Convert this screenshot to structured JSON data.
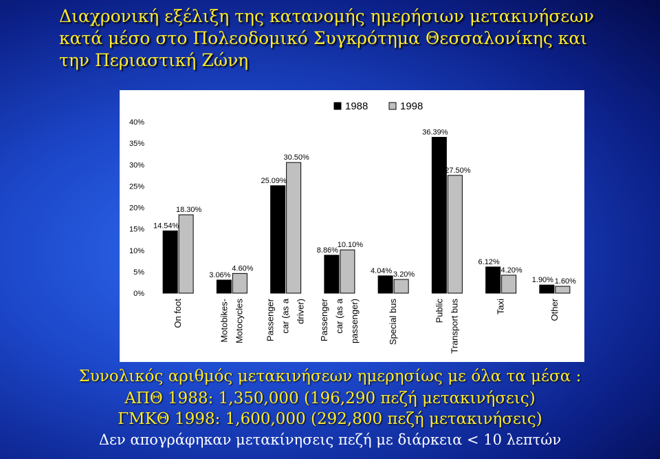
{
  "title_lines": [
    "Διαχρονική εξέλιξη της κατανομής ημερήσιων μετακινήσεων",
    "κατά μέσο στο Πολεοδομικό Συγκρότημα Θεσσαλονίκης και",
    "την Περιαστική Ζώνη"
  ],
  "summary": {
    "heading": "Συνολικός αριθμός μετακινήσεων ημερησίως με όλα τα μέσα :",
    "line1": "ΑΠΘ 1988: 1,350,000 (196,290 πεζή μετακινήσεις)",
    "line2": "ΓΜΚΘ 1998: 1,600,000 (292,800 πεζή μετακινήσεις)",
    "note": "Δεν απογράφηκαν μετακίνησεις πεζή με διάρκεια < 10 λεπτών"
  },
  "chart_data": {
    "type": "bar",
    "categories": [
      [
        "On foot"
      ],
      [
        "Motobikes-",
        "Motocycles"
      ],
      [
        "Passenger",
        "car (as a",
        "driver)"
      ],
      [
        "Passenger",
        "car (as a",
        "passenger)"
      ],
      [
        "Special bus"
      ],
      [
        "Public",
        "Transport bus"
      ],
      [
        "Taxi"
      ],
      [
        "Other"
      ]
    ],
    "series": [
      {
        "name": "1988",
        "color": "#000000",
        "values": [
          14.54,
          3.06,
          25.09,
          8.86,
          4.04,
          36.39,
          6.12,
          1.9
        ],
        "labels": [
          "14.54%",
          "3.06%",
          "25.09%",
          "8.86%",
          "4.04%",
          "36.39%",
          "6.12%",
          "1.90%"
        ]
      },
      {
        "name": "1998",
        "color": "#c0c0c0",
        "values": [
          18.3,
          4.6,
          30.5,
          10.1,
          3.2,
          27.5,
          4.2,
          1.6
        ],
        "labels": [
          "18.30%",
          "4.60%",
          "30.50%",
          "10.10%",
          "3.20%",
          "27.50%",
          "4.20%",
          "1.60%"
        ]
      }
    ],
    "y_ticks": [
      "0%",
      "5%",
      "10%",
      "15%",
      "20%",
      "25%",
      "30%",
      "35%",
      "40%"
    ],
    "ylim": [
      0,
      40
    ],
    "grid": false,
    "legend_position": "top"
  }
}
